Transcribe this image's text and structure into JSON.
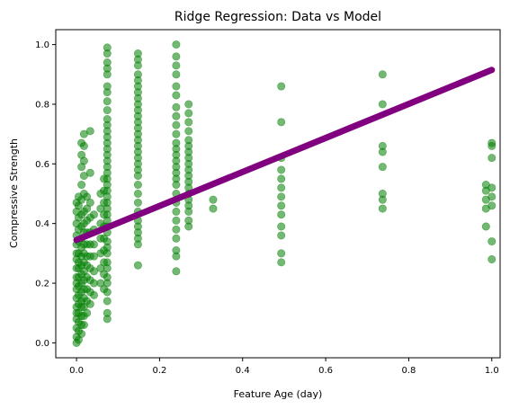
{
  "chart_data": {
    "type": "scatter",
    "title": "Ridge Regression: Data vs Model",
    "xlabel": "Feature Age (day)",
    "ylabel": "Compressive Strength",
    "xlim": [
      -0.05,
      1.02
    ],
    "ylim": [
      -0.05,
      1.05
    ],
    "xticks": [
      "0.0",
      "0.2",
      "0.4",
      "0.6",
      "0.8",
      "1.0"
    ],
    "yticks": [
      "0.0",
      "0.2",
      "0.4",
      "0.6",
      "0.8",
      "1.0"
    ],
    "grid": false,
    "scatter_color": "#008000",
    "scatter_alpha": 0.55,
    "line_color": "#800080",
    "model_line": {
      "x": [
        0.0,
        1.0
      ],
      "y": [
        0.345,
        0.915
      ]
    },
    "points": [
      {
        "x": 0.0,
        "y": 0.0
      },
      {
        "x": 0.0,
        "y": 0.02
      },
      {
        "x": 0.0,
        "y": 0.05
      },
      {
        "x": 0.0,
        "y": 0.08
      },
      {
        "x": 0.0,
        "y": 0.1
      },
      {
        "x": 0.0,
        "y": 0.12
      },
      {
        "x": 0.0,
        "y": 0.15
      },
      {
        "x": 0.0,
        "y": 0.18
      },
      {
        "x": 0.0,
        "y": 0.2
      },
      {
        "x": 0.0,
        "y": 0.22
      },
      {
        "x": 0.0,
        "y": 0.25
      },
      {
        "x": 0.0,
        "y": 0.28
      },
      {
        "x": 0.0,
        "y": 0.3
      },
      {
        "x": 0.0,
        "y": 0.33
      },
      {
        "x": 0.0,
        "y": 0.36
      },
      {
        "x": 0.0,
        "y": 0.4
      },
      {
        "x": 0.0,
        "y": 0.44
      },
      {
        "x": 0.0,
        "y": 0.47
      },
      {
        "x": 0.005,
        "y": 0.01
      },
      {
        "x": 0.005,
        "y": 0.04
      },
      {
        "x": 0.005,
        "y": 0.07
      },
      {
        "x": 0.005,
        "y": 0.1
      },
      {
        "x": 0.005,
        "y": 0.13
      },
      {
        "x": 0.005,
        "y": 0.16
      },
      {
        "x": 0.005,
        "y": 0.19
      },
      {
        "x": 0.005,
        "y": 0.22
      },
      {
        "x": 0.005,
        "y": 0.25
      },
      {
        "x": 0.005,
        "y": 0.27
      },
      {
        "x": 0.005,
        "y": 0.3
      },
      {
        "x": 0.005,
        "y": 0.34
      },
      {
        "x": 0.005,
        "y": 0.38
      },
      {
        "x": 0.005,
        "y": 0.42
      },
      {
        "x": 0.005,
        "y": 0.46
      },
      {
        "x": 0.005,
        "y": 0.49
      },
      {
        "x": 0.012,
        "y": 0.03
      },
      {
        "x": 0.012,
        "y": 0.06
      },
      {
        "x": 0.012,
        "y": 0.09
      },
      {
        "x": 0.012,
        "y": 0.12
      },
      {
        "x": 0.012,
        "y": 0.14
      },
      {
        "x": 0.012,
        "y": 0.17
      },
      {
        "x": 0.012,
        "y": 0.2
      },
      {
        "x": 0.012,
        "y": 0.23
      },
      {
        "x": 0.012,
        "y": 0.26
      },
      {
        "x": 0.012,
        "y": 0.29
      },
      {
        "x": 0.012,
        "y": 0.32
      },
      {
        "x": 0.012,
        "y": 0.35
      },
      {
        "x": 0.012,
        "y": 0.39
      },
      {
        "x": 0.012,
        "y": 0.43
      },
      {
        "x": 0.012,
        "y": 0.48
      },
      {
        "x": 0.012,
        "y": 0.53
      },
      {
        "x": 0.012,
        "y": 0.59
      },
      {
        "x": 0.012,
        "y": 0.63
      },
      {
        "x": 0.012,
        "y": 0.67
      },
      {
        "x": 0.018,
        "y": 0.06
      },
      {
        "x": 0.018,
        "y": 0.09
      },
      {
        "x": 0.018,
        "y": 0.12
      },
      {
        "x": 0.018,
        "y": 0.15
      },
      {
        "x": 0.018,
        "y": 0.18
      },
      {
        "x": 0.018,
        "y": 0.21
      },
      {
        "x": 0.018,
        "y": 0.24
      },
      {
        "x": 0.018,
        "y": 0.27
      },
      {
        "x": 0.018,
        "y": 0.3
      },
      {
        "x": 0.018,
        "y": 0.33
      },
      {
        "x": 0.018,
        "y": 0.37
      },
      {
        "x": 0.018,
        "y": 0.4
      },
      {
        "x": 0.018,
        "y": 0.44
      },
      {
        "x": 0.018,
        "y": 0.5
      },
      {
        "x": 0.018,
        "y": 0.56
      },
      {
        "x": 0.018,
        "y": 0.61
      },
      {
        "x": 0.018,
        "y": 0.66
      },
      {
        "x": 0.018,
        "y": 0.7
      },
      {
        "x": 0.025,
        "y": 0.1
      },
      {
        "x": 0.025,
        "y": 0.14
      },
      {
        "x": 0.025,
        "y": 0.18
      },
      {
        "x": 0.025,
        "y": 0.22
      },
      {
        "x": 0.025,
        "y": 0.26
      },
      {
        "x": 0.025,
        "y": 0.29
      },
      {
        "x": 0.025,
        "y": 0.33
      },
      {
        "x": 0.025,
        "y": 0.37
      },
      {
        "x": 0.025,
        "y": 0.41
      },
      {
        "x": 0.025,
        "y": 0.45
      },
      {
        "x": 0.025,
        "y": 0.49
      },
      {
        "x": 0.033,
        "y": 0.13
      },
      {
        "x": 0.033,
        "y": 0.17
      },
      {
        "x": 0.033,
        "y": 0.21
      },
      {
        "x": 0.033,
        "y": 0.25
      },
      {
        "x": 0.033,
        "y": 0.29
      },
      {
        "x": 0.033,
        "y": 0.33
      },
      {
        "x": 0.033,
        "y": 0.37
      },
      {
        "x": 0.033,
        "y": 0.42
      },
      {
        "x": 0.033,
        "y": 0.47
      },
      {
        "x": 0.033,
        "y": 0.57
      },
      {
        "x": 0.033,
        "y": 0.71
      },
      {
        "x": 0.042,
        "y": 0.16
      },
      {
        "x": 0.042,
        "y": 0.2
      },
      {
        "x": 0.042,
        "y": 0.24
      },
      {
        "x": 0.042,
        "y": 0.29
      },
      {
        "x": 0.042,
        "y": 0.33
      },
      {
        "x": 0.042,
        "y": 0.38
      },
      {
        "x": 0.042,
        "y": 0.43
      },
      {
        "x": 0.058,
        "y": 0.2
      },
      {
        "x": 0.058,
        "y": 0.25
      },
      {
        "x": 0.058,
        "y": 0.3
      },
      {
        "x": 0.058,
        "y": 0.35
      },
      {
        "x": 0.058,
        "y": 0.4
      },
      {
        "x": 0.058,
        "y": 0.45
      },
      {
        "x": 0.058,
        "y": 0.5
      },
      {
        "x": 0.066,
        "y": 0.18
      },
      {
        "x": 0.066,
        "y": 0.23
      },
      {
        "x": 0.066,
        "y": 0.27
      },
      {
        "x": 0.066,
        "y": 0.31
      },
      {
        "x": 0.066,
        "y": 0.35
      },
      {
        "x": 0.066,
        "y": 0.39
      },
      {
        "x": 0.066,
        "y": 0.43
      },
      {
        "x": 0.066,
        "y": 0.47
      },
      {
        "x": 0.066,
        "y": 0.51
      },
      {
        "x": 0.066,
        "y": 0.55
      },
      {
        "x": 0.074,
        "y": 0.08
      },
      {
        "x": 0.074,
        "y": 0.1
      },
      {
        "x": 0.074,
        "y": 0.14
      },
      {
        "x": 0.074,
        "y": 0.17
      },
      {
        "x": 0.074,
        "y": 0.2
      },
      {
        "x": 0.074,
        "y": 0.22
      },
      {
        "x": 0.074,
        "y": 0.25
      },
      {
        "x": 0.074,
        "y": 0.27
      },
      {
        "x": 0.074,
        "y": 0.3
      },
      {
        "x": 0.074,
        "y": 0.32
      },
      {
        "x": 0.074,
        "y": 0.34
      },
      {
        "x": 0.074,
        "y": 0.37
      },
      {
        "x": 0.074,
        "y": 0.39
      },
      {
        "x": 0.074,
        "y": 0.41
      },
      {
        "x": 0.074,
        "y": 0.43
      },
      {
        "x": 0.074,
        "y": 0.45
      },
      {
        "x": 0.074,
        "y": 0.47
      },
      {
        "x": 0.074,
        "y": 0.49
      },
      {
        "x": 0.074,
        "y": 0.51
      },
      {
        "x": 0.074,
        "y": 0.53
      },
      {
        "x": 0.074,
        "y": 0.55
      },
      {
        "x": 0.074,
        "y": 0.57
      },
      {
        "x": 0.074,
        "y": 0.59
      },
      {
        "x": 0.074,
        "y": 0.61
      },
      {
        "x": 0.074,
        "y": 0.63
      },
      {
        "x": 0.074,
        "y": 0.65
      },
      {
        "x": 0.074,
        "y": 0.67
      },
      {
        "x": 0.074,
        "y": 0.69
      },
      {
        "x": 0.074,
        "y": 0.71
      },
      {
        "x": 0.074,
        "y": 0.73
      },
      {
        "x": 0.074,
        "y": 0.75
      },
      {
        "x": 0.074,
        "y": 0.78
      },
      {
        "x": 0.074,
        "y": 0.81
      },
      {
        "x": 0.074,
        "y": 0.84
      },
      {
        "x": 0.074,
        "y": 0.86
      },
      {
        "x": 0.074,
        "y": 0.9
      },
      {
        "x": 0.074,
        "y": 0.92
      },
      {
        "x": 0.074,
        "y": 0.94
      },
      {
        "x": 0.074,
        "y": 0.97
      },
      {
        "x": 0.074,
        "y": 0.99
      },
      {
        "x": 0.148,
        "y": 0.26
      },
      {
        "x": 0.148,
        "y": 0.33
      },
      {
        "x": 0.148,
        "y": 0.35
      },
      {
        "x": 0.148,
        "y": 0.37
      },
      {
        "x": 0.148,
        "y": 0.39
      },
      {
        "x": 0.148,
        "y": 0.41
      },
      {
        "x": 0.148,
        "y": 0.44
      },
      {
        "x": 0.148,
        "y": 0.47
      },
      {
        "x": 0.148,
        "y": 0.5
      },
      {
        "x": 0.148,
        "y": 0.53
      },
      {
        "x": 0.148,
        "y": 0.56
      },
      {
        "x": 0.148,
        "y": 0.58
      },
      {
        "x": 0.148,
        "y": 0.6
      },
      {
        "x": 0.148,
        "y": 0.62
      },
      {
        "x": 0.148,
        "y": 0.64
      },
      {
        "x": 0.148,
        "y": 0.66
      },
      {
        "x": 0.148,
        "y": 0.68
      },
      {
        "x": 0.148,
        "y": 0.7
      },
      {
        "x": 0.148,
        "y": 0.72
      },
      {
        "x": 0.148,
        "y": 0.74
      },
      {
        "x": 0.148,
        "y": 0.76
      },
      {
        "x": 0.148,
        "y": 0.78
      },
      {
        "x": 0.148,
        "y": 0.8
      },
      {
        "x": 0.148,
        "y": 0.82
      },
      {
        "x": 0.148,
        "y": 0.84
      },
      {
        "x": 0.148,
        "y": 0.86
      },
      {
        "x": 0.148,
        "y": 0.88
      },
      {
        "x": 0.148,
        "y": 0.9
      },
      {
        "x": 0.148,
        "y": 0.93
      },
      {
        "x": 0.148,
        "y": 0.95
      },
      {
        "x": 0.148,
        "y": 0.97
      },
      {
        "x": 0.24,
        "y": 0.24
      },
      {
        "x": 0.24,
        "y": 0.29
      },
      {
        "x": 0.24,
        "y": 0.31
      },
      {
        "x": 0.24,
        "y": 0.35
      },
      {
        "x": 0.24,
        "y": 0.38
      },
      {
        "x": 0.24,
        "y": 0.41
      },
      {
        "x": 0.24,
        "y": 0.44
      },
      {
        "x": 0.24,
        "y": 0.47
      },
      {
        "x": 0.24,
        "y": 0.5
      },
      {
        "x": 0.24,
        "y": 0.53
      },
      {
        "x": 0.24,
        "y": 0.55
      },
      {
        "x": 0.24,
        "y": 0.57
      },
      {
        "x": 0.24,
        "y": 0.59
      },
      {
        "x": 0.24,
        "y": 0.61
      },
      {
        "x": 0.24,
        "y": 0.63
      },
      {
        "x": 0.24,
        "y": 0.65
      },
      {
        "x": 0.24,
        "y": 0.67
      },
      {
        "x": 0.24,
        "y": 0.7
      },
      {
        "x": 0.24,
        "y": 0.73
      },
      {
        "x": 0.24,
        "y": 0.76
      },
      {
        "x": 0.24,
        "y": 0.79
      },
      {
        "x": 0.24,
        "y": 0.83
      },
      {
        "x": 0.24,
        "y": 0.86
      },
      {
        "x": 0.24,
        "y": 0.9
      },
      {
        "x": 0.24,
        "y": 0.93
      },
      {
        "x": 0.24,
        "y": 0.96
      },
      {
        "x": 0.24,
        "y": 1.0
      },
      {
        "x": 0.27,
        "y": 0.39
      },
      {
        "x": 0.27,
        "y": 0.41
      },
      {
        "x": 0.27,
        "y": 0.44
      },
      {
        "x": 0.27,
        "y": 0.46
      },
      {
        "x": 0.27,
        "y": 0.48
      },
      {
        "x": 0.27,
        "y": 0.5
      },
      {
        "x": 0.27,
        "y": 0.52
      },
      {
        "x": 0.27,
        "y": 0.54
      },
      {
        "x": 0.27,
        "y": 0.56
      },
      {
        "x": 0.27,
        "y": 0.58
      },
      {
        "x": 0.27,
        "y": 0.6
      },
      {
        "x": 0.27,
        "y": 0.62
      },
      {
        "x": 0.27,
        "y": 0.64
      },
      {
        "x": 0.27,
        "y": 0.66
      },
      {
        "x": 0.27,
        "y": 0.68
      },
      {
        "x": 0.27,
        "y": 0.71
      },
      {
        "x": 0.27,
        "y": 0.74
      },
      {
        "x": 0.27,
        "y": 0.77
      },
      {
        "x": 0.27,
        "y": 0.8
      },
      {
        "x": 0.329,
        "y": 0.45
      },
      {
        "x": 0.329,
        "y": 0.48
      },
      {
        "x": 0.493,
        "y": 0.27
      },
      {
        "x": 0.493,
        "y": 0.3
      },
      {
        "x": 0.493,
        "y": 0.36
      },
      {
        "x": 0.493,
        "y": 0.39
      },
      {
        "x": 0.493,
        "y": 0.43
      },
      {
        "x": 0.493,
        "y": 0.46
      },
      {
        "x": 0.493,
        "y": 0.49
      },
      {
        "x": 0.493,
        "y": 0.52
      },
      {
        "x": 0.493,
        "y": 0.55
      },
      {
        "x": 0.493,
        "y": 0.58
      },
      {
        "x": 0.493,
        "y": 0.62
      },
      {
        "x": 0.493,
        "y": 0.74
      },
      {
        "x": 0.493,
        "y": 0.86
      },
      {
        "x": 0.737,
        "y": 0.45
      },
      {
        "x": 0.737,
        "y": 0.48
      },
      {
        "x": 0.737,
        "y": 0.5
      },
      {
        "x": 0.737,
        "y": 0.59
      },
      {
        "x": 0.737,
        "y": 0.64
      },
      {
        "x": 0.737,
        "y": 0.66
      },
      {
        "x": 0.737,
        "y": 0.8
      },
      {
        "x": 0.737,
        "y": 0.9
      },
      {
        "x": 0.986,
        "y": 0.39
      },
      {
        "x": 0.986,
        "y": 0.45
      },
      {
        "x": 0.986,
        "y": 0.48
      },
      {
        "x": 0.986,
        "y": 0.51
      },
      {
        "x": 0.986,
        "y": 0.53
      },
      {
        "x": 1.0,
        "y": 0.28
      },
      {
        "x": 1.0,
        "y": 0.34
      },
      {
        "x": 1.0,
        "y": 0.46
      },
      {
        "x": 1.0,
        "y": 0.49
      },
      {
        "x": 1.0,
        "y": 0.52
      },
      {
        "x": 1.0,
        "y": 0.62
      },
      {
        "x": 1.0,
        "y": 0.66
      },
      {
        "x": 1.0,
        "y": 0.67
      }
    ]
  }
}
